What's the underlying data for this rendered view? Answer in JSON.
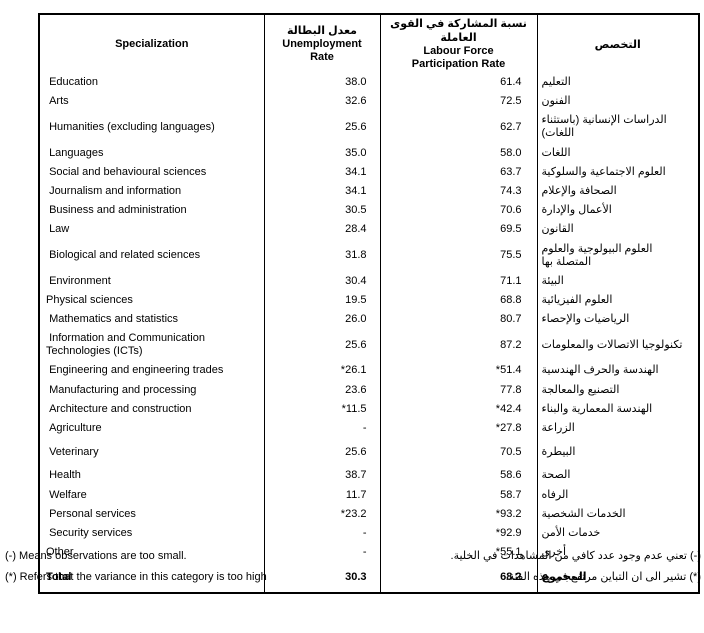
{
  "table": {
    "headers": {
      "specialization": "Specialization",
      "unemployment_ar": "معدل البطالة",
      "unemployment_en": "Unemployment Rate",
      "lfpr_ar": "نسبة المشاركة في القوى العاملة",
      "lfpr_en": "Labour Force Participation Rate",
      "specialization_ar": "التخصص"
    },
    "rows": [
      {
        "en": " Education",
        "unemployment": "38.0",
        "lfpr": "61.4",
        "ar": "التعليم"
      },
      {
        "en": " Arts",
        "unemployment": "32.6",
        "lfpr": "72.5",
        "ar": "الفنون"
      },
      {
        "en": " Humanities (excluding languages)",
        "unemployment": "25.6",
        "lfpr": "62.7",
        "ar": "الدراسات الإنسانية (باستثناء اللغات)"
      },
      {
        "en": " Languages",
        "unemployment": "35.0",
        "lfpr": "58.0",
        "ar": "اللغات"
      },
      {
        "en": " Social and behavioural sciences",
        "unemployment": "34.1",
        "lfpr": "63.7",
        "ar": "العلوم الاجتماعية والسلوكية"
      },
      {
        "en": " Journalism and information",
        "unemployment": "34.1",
        "lfpr": "74.3",
        "ar": "الصحافة والإعلام"
      },
      {
        "en": " Business and administration",
        "unemployment": "30.5",
        "lfpr": "70.6",
        "ar": "الأعمال والإدارة"
      },
      {
        "en": " Law",
        "unemployment": "28.4",
        "lfpr": "69.5",
        "ar": "القانون"
      },
      {
        "en": " Biological and related sciences",
        "unemployment": "31.8",
        "lfpr": "75.5",
        "ar": "العلوم البيولوجية والعلوم المتصلة بها"
      },
      {
        "en": " Environment",
        "unemployment": "30.4",
        "lfpr": "71.1",
        "ar": "البيئة"
      },
      {
        "en": "Physical sciences",
        "unemployment": "19.5",
        "lfpr": "68.8",
        "ar": "العلوم الفيزيائية"
      },
      {
        "en": " Mathematics and statistics",
        "unemployment": "26.0",
        "lfpr": "80.7",
        "ar": "الرياضيات والإحصاء"
      },
      {
        "en": " Information and Communication Technologies (ICTs)",
        "unemployment": "25.6",
        "lfpr": "87.2",
        "ar": "تكنولوجيا الاتصالات والمعلومات"
      },
      {
        "en": " Engineering and engineering trades",
        "unemployment": "*26.1",
        "lfpr": "*51.4",
        "ar": "الهندسة والحرف الهندسية"
      },
      {
        "en": " Manufacturing and processing",
        "unemployment": "23.6",
        "lfpr": "77.8",
        "ar": "التصنيع والمعالجة"
      },
      {
        "en": " Architecture and construction",
        "unemployment": "*11.5",
        "lfpr": "*42.4",
        "ar": "الهندسة المعمارية والبناء"
      },
      {
        "en": " Agriculture",
        "unemployment": "-",
        "lfpr": "*27.8",
        "ar": "الزراعة"
      },
      {
        "en": " Veterinary",
        "unemployment": "25.6",
        "lfpr": "70.5",
        "ar": "البيطرة"
      },
      {
        "en": " Health",
        "unemployment": "38.7",
        "lfpr": "58.6",
        "ar": "الصحة"
      },
      {
        "en": " Welfare",
        "unemployment": "11.7",
        "lfpr": "58.7",
        "ar": "الرفاه"
      },
      {
        "en": " Personal services",
        "unemployment": "*23.2",
        "lfpr": "*93.2",
        "ar": "الخدمات الشخصية"
      },
      {
        "en": " Security services",
        "unemployment": "-",
        "lfpr": "*92.9",
        "ar": "خدمات الأمن"
      },
      {
        "en": "Other",
        "unemployment": "-",
        "lfpr": "*55.1",
        "ar": "أخرى"
      }
    ],
    "total": {
      "en": "Total",
      "unemployment": "30.3",
      "lfpr": "68.2",
      "ar": "المجموع"
    }
  },
  "footnotes": {
    "en": [
      "(-) Means observations are too small.",
      "(*) Refers that the variance in this category is too high"
    ],
    "ar": [
      "(-) تعني عدم وجود عدد كافي من المشاهدات في الخلية.",
      "(*) تشير الى ان التباين مرتفع في هذه الفئة."
    ]
  }
}
